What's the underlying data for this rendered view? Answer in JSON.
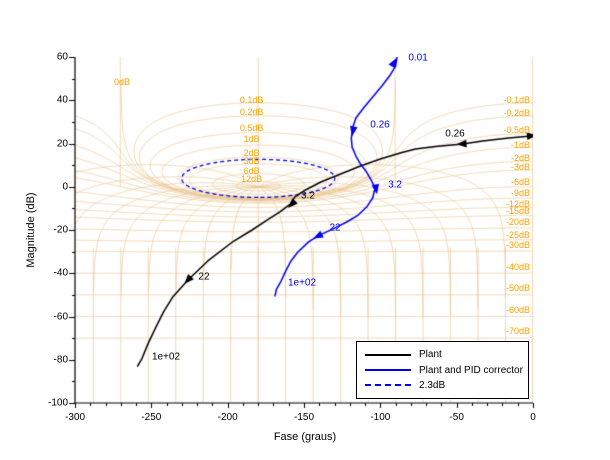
{
  "figure": {
    "bg": "#ffffff"
  },
  "chart_data": {
    "type": "line",
    "title": "",
    "xlabel": "Fase (graus)",
    "ylabel": "Magnitude (dB)",
    "xlim": [
      -300,
      0
    ],
    "ylim": [
      -100,
      60
    ],
    "grid_on": true,
    "xticks": {
      "values": [
        -300,
        -250,
        -200,
        -150,
        -100,
        -50,
        0
      ],
      "labels": [
        "-300",
        "-250",
        "-200",
        "-150",
        "-100",
        "-50",
        "0"
      ],
      "minor_step": 10
    },
    "yticks": {
      "values": [
        60,
        40,
        20,
        0,
        -20,
        -40,
        -60,
        -80,
        -100
      ],
      "labels": [
        "60",
        "40",
        "20",
        "0",
        "-20",
        "-40",
        "-60",
        "-80",
        "-100"
      ],
      "minor_step": 10
    },
    "nichols_grid": {
      "color": "#e8c48a",
      "label_color": "#ffa000",
      "mag_contours_db": [
        0.1,
        0.2,
        0.5,
        1,
        2,
        3,
        6,
        12,
        0,
        -0.1,
        -0.2,
        -0.5,
        -1,
        -2,
        -3,
        -6,
        -9,
        -12,
        -15,
        -20,
        -25,
        -30,
        -40,
        -50,
        -60,
        -70
      ],
      "phase_contour_step_deg": 18,
      "labels": [
        {
          "text": "0dB",
          "phase": -269.2,
          "db": 48.4,
          "align": "center"
        },
        {
          "text": "0.1dB",
          "phase": -184.3,
          "db": 40.1,
          "align": "center"
        },
        {
          "text": "0.2dB",
          "phase": -184.3,
          "db": 34.6,
          "align": "center"
        },
        {
          "text": "0.5dB",
          "phase": -184.3,
          "db": 27.2,
          "align": "center"
        },
        {
          "text": "1dB",
          "phase": -184.3,
          "db": 22.1,
          "align": "center"
        },
        {
          "text": "2dB",
          "phase": -184.3,
          "db": 15.6,
          "align": "center"
        },
        {
          "text": "3dB",
          "phase": -184.3,
          "db": 11.9,
          "align": "center"
        },
        {
          "text": "6dB",
          "phase": -184.3,
          "db": 7.3,
          "align": "center"
        },
        {
          "text": "12dB",
          "phase": -184.3,
          "db": 3.6,
          "align": "center"
        },
        {
          "text": "-0.1dB",
          "db": 40.1,
          "align": "right"
        },
        {
          "text": "-0.2dB",
          "db": 34.1,
          "align": "right"
        },
        {
          "text": "-0.5dB",
          "db": 26.2,
          "align": "right"
        },
        {
          "text": "-1dB",
          "db": 19.3,
          "align": "right"
        },
        {
          "text": "-2dB",
          "db": 13.3,
          "align": "right"
        },
        {
          "text": "-3dB",
          "db": 9.1,
          "align": "right"
        },
        {
          "text": "-6dB",
          "db": 2.2,
          "align": "right"
        },
        {
          "text": "-9dB",
          "db": -2.9,
          "align": "right"
        },
        {
          "text": "-12dB",
          "db": -8.0,
          "align": "right"
        },
        {
          "text": "-15dB",
          "db": -11.2,
          "align": "right"
        },
        {
          "text": "-20dB",
          "db": -16.3,
          "align": "right"
        },
        {
          "text": "-25dB",
          "db": -22.3,
          "align": "right"
        },
        {
          "text": "-30dB",
          "db": -26.9,
          "align": "right"
        },
        {
          "text": "-40dB",
          "db": -37.1,
          "align": "right"
        },
        {
          "text": "-50dB",
          "db": -46.8,
          "align": "right"
        },
        {
          "text": "-60dB",
          "db": -57.0,
          "align": "right"
        },
        {
          "text": "-70dB",
          "db": -66.7,
          "align": "right"
        }
      ]
    },
    "highlight_contour": {
      "db": 2.3,
      "color": "#0000ee",
      "style": "dashed"
    },
    "series": [
      {
        "name": "Plant",
        "color": "#000000",
        "points": [
          [
            -1,
            23.5
          ],
          [
            -16,
            22.5
          ],
          [
            -33,
            21.2
          ],
          [
            -46,
            19.8
          ],
          [
            -64,
            18.6
          ],
          [
            -77,
            17.5
          ],
          [
            -87,
            15.6
          ],
          [
            -100,
            12.8
          ],
          [
            -113,
            9.6
          ],
          [
            -126,
            5.9
          ],
          [
            -139,
            2.2
          ],
          [
            -149,
            -1.5
          ],
          [
            -156,
            -4.7
          ],
          [
            -159,
            -8.0
          ],
          [
            -166,
            -11.7
          ],
          [
            -175,
            -15.8
          ],
          [
            -184,
            -20.0
          ],
          [
            -196,
            -25.1
          ],
          [
            -213,
            -34.3
          ],
          [
            -226,
            -43.1
          ],
          [
            -236,
            -51.0
          ],
          [
            -242,
            -57.9
          ],
          [
            -247,
            -64.9
          ],
          [
            -252,
            -72.3
          ],
          [
            -256,
            -79.2
          ],
          [
            -259,
            -82.9
          ]
        ],
        "markers": [
          {
            "label": "",
            "phase": -1,
            "db": 23.5,
            "angle": -5,
            "dx": 0,
            "dy": 0
          },
          {
            "label": "0.26",
            "phase": -46.5,
            "db": 19.8,
            "angle": 176,
            "dx": -7,
            "dy": -10
          },
          {
            "label": "3.2",
            "phase": -157.9,
            "db": -8.0,
            "angle": 135,
            "dx": 16,
            "dy": -8
          },
          {
            "label": "22",
            "phase": -226,
            "db": -43.1,
            "angle": 133,
            "dx": 16,
            "dy": -3
          }
        ],
        "end_label": {
          "label": "1e+02",
          "phase": -240.4,
          "db": -78.7
        }
      },
      {
        "name": "Plant and PID corrector",
        "color": "#0000ee",
        "points": [
          [
            -89,
            60.0
          ],
          [
            -90,
            55.8
          ],
          [
            -94,
            51.2
          ],
          [
            -99,
            46.6
          ],
          [
            -105,
            41.5
          ],
          [
            -111,
            36.4
          ],
          [
            -116,
            31.8
          ],
          [
            -118,
            27.6
          ],
          [
            -119,
            22.5
          ],
          [
            -118.5,
            18.4
          ],
          [
            -116,
            14.2
          ],
          [
            -113,
            10.5
          ],
          [
            -109,
            6.8
          ],
          [
            -106,
            3.1
          ],
          [
            -103.5,
            -0.6
          ],
          [
            -105,
            -5.2
          ],
          [
            -109,
            -9.4
          ],
          [
            -114.5,
            -13.1
          ],
          [
            -122,
            -16.3
          ],
          [
            -131,
            -19.5
          ],
          [
            -141,
            -22.8
          ],
          [
            -147,
            -25.5
          ],
          [
            -154,
            -30.2
          ],
          [
            -158.5,
            -34.3
          ],
          [
            -162,
            -39.0
          ],
          [
            -165,
            -43.6
          ],
          [
            -168,
            -47.3
          ],
          [
            -169,
            -50.5
          ]
        ],
        "markers": [
          {
            "label": "0.01",
            "phase": -91,
            "db": 57.5,
            "angle": -60,
            "dx": 24,
            "dy": -4
          },
          {
            "label": "0.26",
            "phase": -117.9,
            "db": 25.8,
            "angle": 100,
            "dx": 27,
            "dy": -6
          },
          {
            "label": "3.2",
            "phase": -102.8,
            "db": -1.0,
            "angle": 80,
            "dx": 19,
            "dy": -4
          },
          {
            "label": "22",
            "phase": -140.8,
            "db": -22.8,
            "angle": 153,
            "dx": 17,
            "dy": -8
          }
        ],
        "end_label": {
          "label": "1e+02",
          "phase": -151.3,
          "db": -44.5
        }
      }
    ],
    "legend": {
      "position": "bottom-right",
      "entries": [
        {
          "label": "Plant",
          "color": "#000000",
          "dash": false
        },
        {
          "label": "Plant and PID corrector",
          "color": "#0000ee",
          "dash": false
        },
        {
          "label": "2.3dB",
          "color": "#0000ee",
          "dash": true
        }
      ]
    }
  }
}
